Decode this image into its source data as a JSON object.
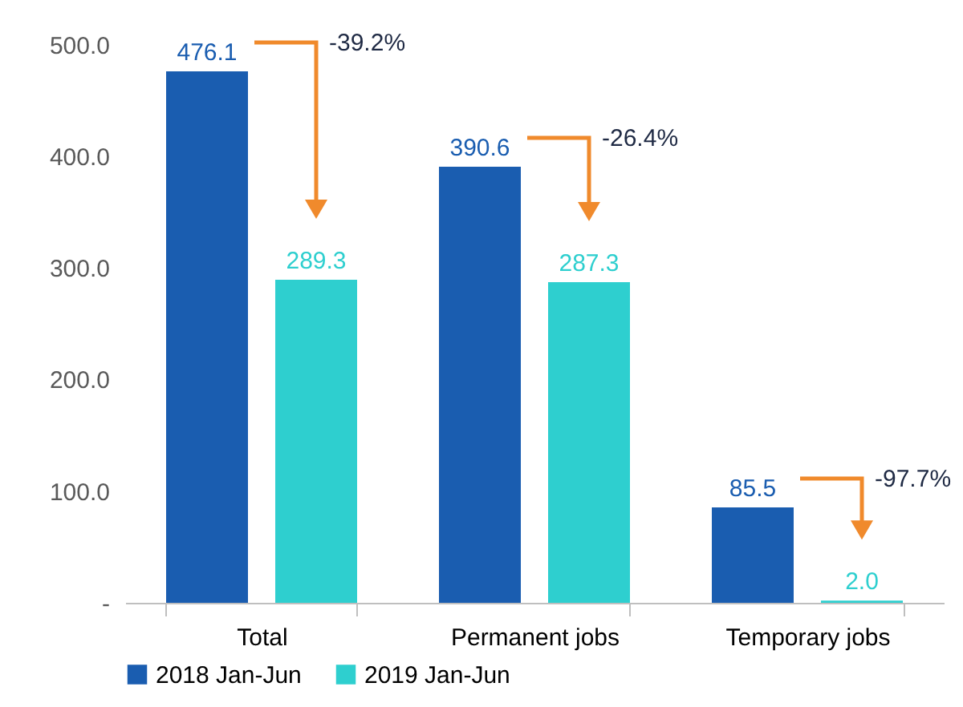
{
  "chart_data": {
    "type": "bar",
    "categories": [
      "Total",
      "Permanent jobs",
      "Temporary jobs"
    ],
    "series": [
      {
        "name": "2018 Jan-Jun",
        "color": "#1a5db0",
        "values": [
          476.1,
          390.6,
          85.5
        ],
        "value_labels": [
          "476.1",
          "390.6",
          "85.5"
        ]
      },
      {
        "name": "2019 Jan-Jun",
        "color": "#2ecfcf",
        "values": [
          289.3,
          287.3,
          2.0
        ],
        "value_labels": [
          "289.3",
          "287.3",
          "2.0"
        ]
      }
    ],
    "ylim": [
      0,
      540
    ],
    "yticks": [
      {
        "value": 0,
        "label": "-"
      },
      {
        "value": 100,
        "label": "100.0"
      },
      {
        "value": 200,
        "label": "200.0"
      },
      {
        "value": 300,
        "label": "300.0"
      },
      {
        "value": 400,
        "label": "400.0"
      },
      {
        "value": 500,
        "label": "500.0"
      }
    ],
    "grid": false,
    "legend": "bottom",
    "annotations": [
      "-39.2%",
      "-26.4%",
      "-97.7%"
    ]
  }
}
